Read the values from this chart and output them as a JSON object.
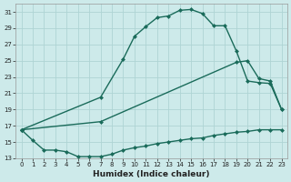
{
  "xlabel": "Humidex (Indice chaleur)",
  "background_color": "#cdeaea",
  "grid_color": "#aed4d4",
  "line_color": "#1a6b5a",
  "xlim": [
    -0.5,
    23.5
  ],
  "ylim": [
    13,
    32
  ],
  "xticks": [
    0,
    1,
    2,
    3,
    4,
    5,
    6,
    7,
    8,
    9,
    10,
    11,
    12,
    13,
    14,
    15,
    16,
    17,
    18,
    19,
    20,
    21,
    22,
    23
  ],
  "yticks": [
    13,
    15,
    17,
    19,
    21,
    23,
    25,
    27,
    29,
    31
  ],
  "curve_upper_x": [
    0,
    7,
    9,
    10,
    11,
    12,
    13,
    14,
    15,
    16,
    17,
    18,
    19,
    20,
    21,
    22,
    23
  ],
  "curve_upper_y": [
    16.5,
    20.5,
    25.2,
    28.0,
    29.2,
    30.3,
    30.5,
    31.2,
    31.3,
    30.8,
    29.3,
    29.3,
    26.2,
    22.5,
    22.3,
    22.2,
    19.0
  ],
  "curve_mid_x": [
    0,
    7,
    19,
    20,
    21,
    22,
    23
  ],
  "curve_mid_y": [
    16.5,
    17.5,
    24.8,
    25.0,
    22.8,
    22.5,
    19.0
  ],
  "curve_lower_x": [
    0,
    1,
    2,
    3,
    4,
    5,
    6,
    7,
    8,
    9,
    10,
    11,
    12,
    13,
    14,
    15,
    16,
    17,
    18,
    19,
    20,
    21,
    22,
    23
  ],
  "curve_lower_y": [
    16.5,
    15.2,
    14.0,
    14.0,
    13.8,
    13.2,
    13.2,
    13.2,
    13.5,
    14.0,
    14.3,
    14.5,
    14.8,
    15.0,
    15.2,
    15.4,
    15.5,
    15.8,
    16.0,
    16.2,
    16.3,
    16.5,
    16.5,
    16.5
  ],
  "marker_size": 2.5,
  "linewidth": 1.0,
  "xlabel_fontsize": 6.5,
  "tick_fontsize": 5.0
}
